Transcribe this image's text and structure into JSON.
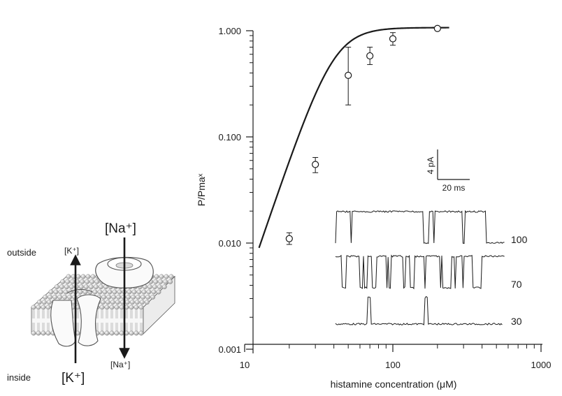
{
  "chart_data": {
    "type": "scatter",
    "x_scale": "log",
    "y_scale": "log",
    "xlabel": "histamine concentration (μM)",
    "ylabel": "P/Pmaˣ",
    "xlim": [
      10,
      1000
    ],
    "ylim": [
      0.001,
      1.0
    ],
    "x_ticks": [
      {
        "value": 10,
        "label": "10"
      },
      {
        "value": 100,
        "label": "100"
      },
      {
        "value": 1000,
        "label": "1000"
      }
    ],
    "y_ticks": [
      {
        "value": 0.001,
        "label": "0.001"
      },
      {
        "value": 0.01,
        "label": "0.010"
      },
      {
        "value": 0.1,
        "label": "0.100"
      },
      {
        "value": 1.0,
        "label": "1.000"
      }
    ],
    "points": [
      {
        "x": 20,
        "y": 0.011,
        "err_low": 0.0097,
        "err_high": 0.0125
      },
      {
        "x": 30,
        "y": 0.055,
        "err_low": 0.046,
        "err_high": 0.064
      },
      {
        "x": 50,
        "y": 0.38,
        "err_low": 0.2,
        "err_high": 0.7
      },
      {
        "x": 70,
        "y": 0.58,
        "err_low": 0.48,
        "err_high": 0.7
      },
      {
        "x": 100,
        "y": 0.84,
        "err_low": 0.73,
        "err_high": 0.96
      },
      {
        "x": 200,
        "y": 1.05
      }
    ],
    "fit_curve": {
      "model": "hill",
      "ec50": 40,
      "hill_coefficient": 4.1,
      "pmax": 1.07,
      "x_range": [
        12.5,
        240
      ]
    },
    "grid": false,
    "legend": "none"
  },
  "inset_traces": {
    "scale_bar": {
      "current_label": "4 pA",
      "time_label": "20 ms"
    },
    "traces": [
      {
        "label": "100",
        "open_fraction": 0.85
      },
      {
        "label": "70",
        "open_fraction": 0.55
      },
      {
        "label": "30",
        "open_fraction": 0.02
      }
    ]
  },
  "membrane_diagram": {
    "outside_label": "outside",
    "inside_label": "inside",
    "k_top": "[K⁺]",
    "k_bottom": "[K⁺]",
    "na_top": "[Na⁺]",
    "na_bottom": "[Na⁺]"
  }
}
